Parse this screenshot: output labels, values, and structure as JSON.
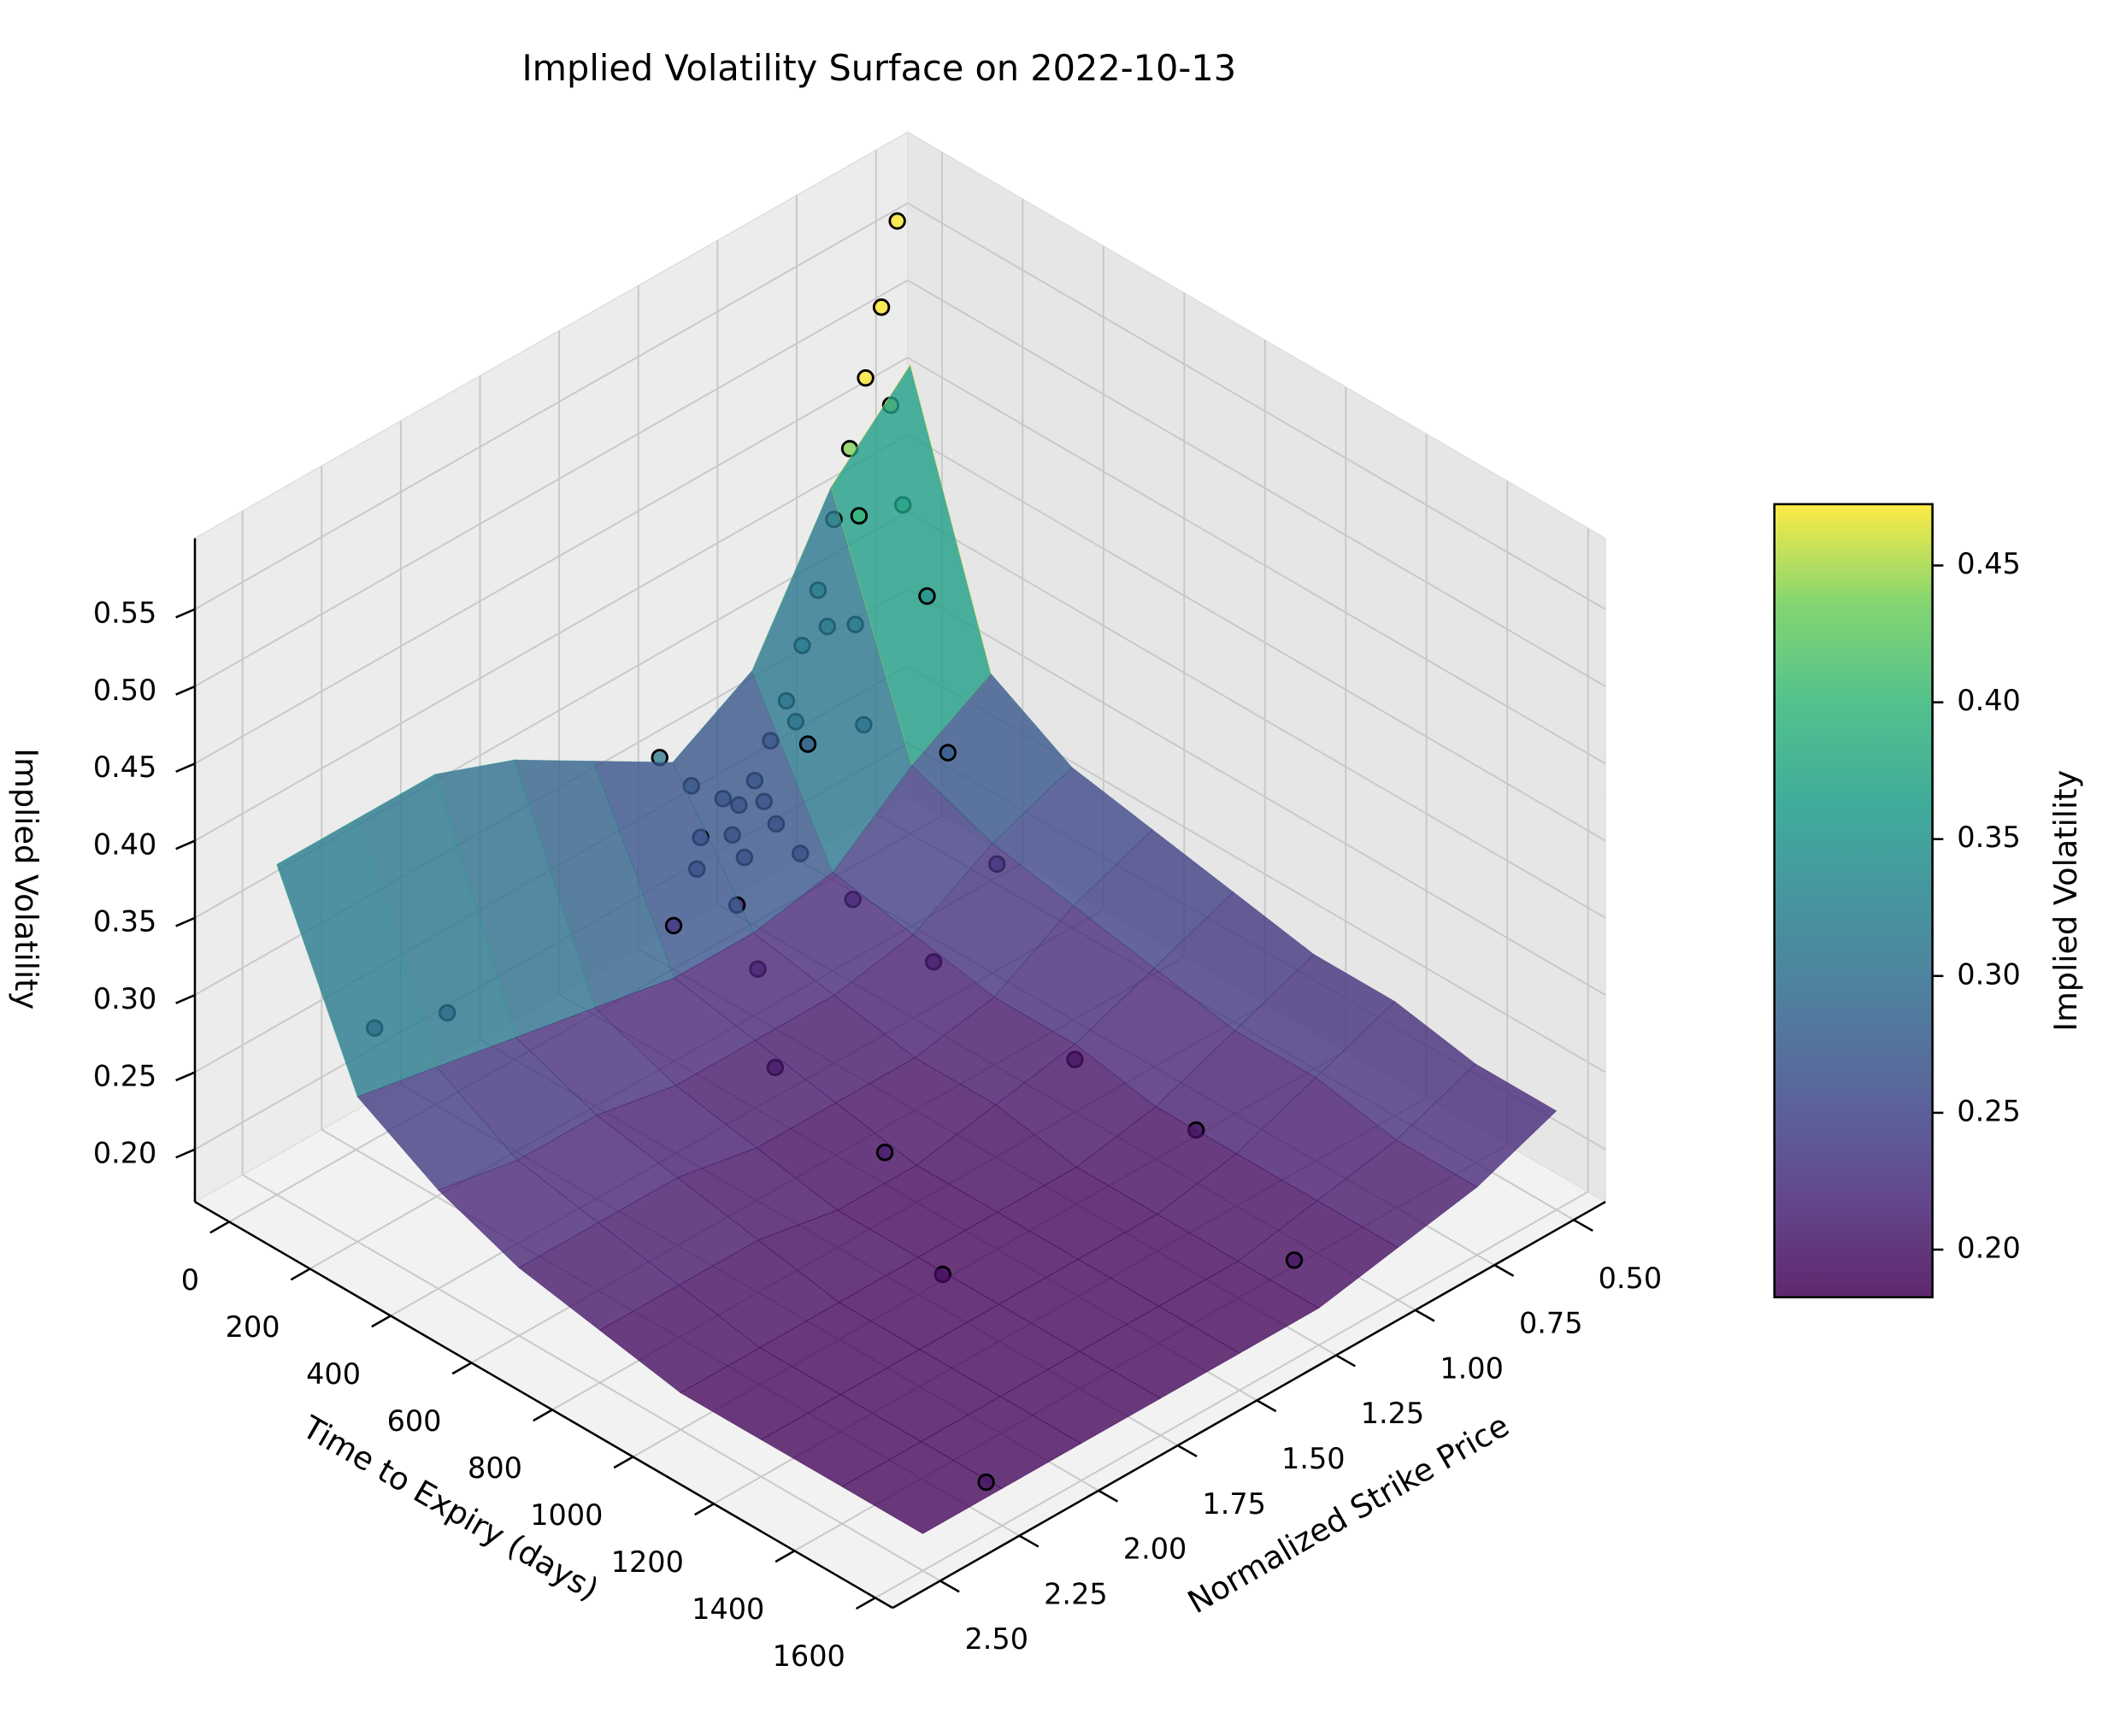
{
  "chart_data": {
    "type": "surface3d",
    "title": "Implied Volatility Surface on 2022-10-13",
    "x_label": "Time to Expiry (days)",
    "y_label": "Normalized Strike Price",
    "z_label": "Implied Volatility",
    "xlim": [
      -85,
      1643
    ],
    "ylim": [
      0.4,
      2.65
    ],
    "zlim": [
      0.166,
      0.596
    ],
    "xticks": [
      0,
      200,
      400,
      600,
      800,
      1000,
      1200,
      1400,
      1600
    ],
    "yticks": [
      {
        "value": 0.5,
        "label": "0.50"
      },
      {
        "value": 0.75,
        "label": "0.75"
      },
      {
        "value": 1.0,
        "label": "1.00"
      },
      {
        "value": 1.25,
        "label": "1.25"
      },
      {
        "value": 1.5,
        "label": "1.50"
      },
      {
        "value": 1.75,
        "label": "1.75"
      },
      {
        "value": 2.0,
        "label": "2.00"
      },
      {
        "value": 2.25,
        "label": "2.25"
      },
      {
        "value": 2.5,
        "label": "2.50"
      }
    ],
    "zticks": [
      {
        "value": 0.2,
        "label": "0.20"
      },
      0.25,
      {
        "value": 0.3,
        "label": "0.30"
      },
      0.35,
      {
        "value": 0.4,
        "label": "0.40"
      },
      0.45,
      {
        "value": 0.5,
        "label": "0.50"
      },
      0.55
    ],
    "grid": true,
    "colormap": "viridis",
    "clim": [
      0.1826,
      0.4724
    ],
    "colorbar": {
      "label": "Implied Volatility",
      "ticks": [
        {
          "value": 0.2,
          "label": "0.20"
        },
        0.25,
        {
          "value": 0.3,
          "label": "0.30"
        },
        0.35,
        {
          "value": 0.4,
          "label": "0.40"
        },
        0.45
      ]
    },
    "surface": {
      "x": [
        0,
        200,
        400,
        600,
        800,
        1000,
        1200,
        1400,
        1600
      ],
      "y": [
        0.5,
        0.75,
        1.0,
        1.25,
        1.5,
        1.75,
        2.0,
        2.25,
        2.5
      ],
      "z": [
        [
          0.47,
          0.42,
          0.33,
          0.3,
          0.33,
          0.36,
          0.38,
          0.38,
          0.38
        ],
        [
          0.3,
          0.27,
          0.23,
          0.22,
          0.22,
          0.23,
          0.24,
          0.25,
          0.26
        ],
        [
          0.27,
          0.25,
          0.22,
          0.21,
          0.21,
          0.21,
          0.22,
          0.22,
          0.23
        ],
        [
          0.26,
          0.24,
          0.21,
          0.2,
          0.2,
          0.2,
          0.21,
          0.21,
          0.21
        ],
        [
          0.25,
          0.23,
          0.21,
          0.2,
          0.19,
          0.19,
          0.2,
          0.2,
          0.2
        ],
        [
          0.24,
          0.22,
          0.2,
          0.19,
          0.19,
          0.19,
          0.19,
          0.19,
          0.19
        ],
        [
          0.24,
          0.22,
          0.2,
          0.19,
          0.19,
          0.19,
          0.19,
          0.19,
          0.19
        ],
        [
          0.23,
          0.21,
          0.2,
          0.19,
          0.19,
          0.19,
          0.19,
          0.19,
          0.19
        ],
        [
          0.23,
          0.21,
          0.2,
          0.19,
          0.19,
          0.19,
          0.19,
          0.19,
          0.19
        ]
      ]
    },
    "scatter": {
      "x": [
        7,
        7,
        7,
        7,
        7,
        7,
        7,
        7,
        7,
        7,
        7,
        7,
        7,
        7,
        30,
        30,
        30,
        30,
        30,
        30,
        30,
        60,
        60,
        60,
        60,
        60,
        60,
        120,
        120,
        120,
        120,
        120,
        250,
        250,
        250,
        450,
        450,
        450,
        800,
        800,
        1100,
        1100,
        1500,
        1600,
        7,
        30
      ],
      "y": [
        0.55,
        0.6,
        0.65,
        0.7,
        0.75,
        0.8,
        0.85,
        0.9,
        0.95,
        1.0,
        1.05,
        1.1,
        1.2,
        1.3,
        0.6,
        0.7,
        0.8,
        0.9,
        1.0,
        1.1,
        1.2,
        0.6,
        0.75,
        0.9,
        1.0,
        1.1,
        1.25,
        0.6,
        0.8,
        1.0,
        1.2,
        1.4,
        0.7,
        1.0,
        1.3,
        0.8,
        1.0,
        1.5,
        1.0,
        1.6,
        1.0,
        1.8,
        1.2,
        2.3,
        2.2,
        2.0
      ],
      "z": [
        0.57,
        0.52,
        0.48,
        0.44,
        0.4,
        0.36,
        0.33,
        0.3,
        0.28,
        0.26,
        0.25,
        0.26,
        0.28,
        0.31,
        0.46,
        0.4,
        0.34,
        0.29,
        0.25,
        0.24,
        0.25,
        0.4,
        0.34,
        0.28,
        0.24,
        0.23,
        0.24,
        0.35,
        0.29,
        0.23,
        0.22,
        0.23,
        0.28,
        0.22,
        0.21,
        0.25,
        0.21,
        0.2,
        0.2,
        0.21,
        0.2,
        0.2,
        0.2,
        0.2,
        0.24,
        0.23
      ]
    }
  }
}
